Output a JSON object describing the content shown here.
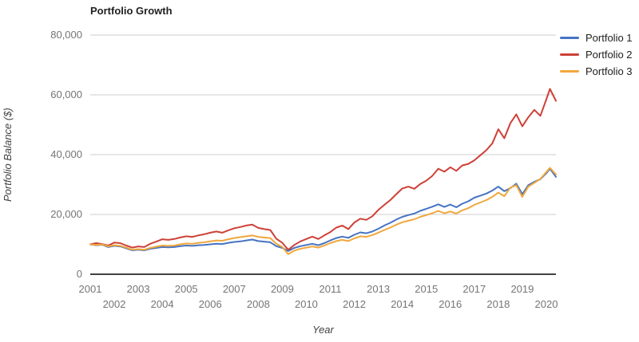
{
  "title": "Portfolio Growth",
  "chart_data": {
    "type": "line",
    "title": "Portfolio Growth",
    "xlabel": "Year",
    "ylabel": "Portfolio Balance ($)",
    "legend_position": "top-right",
    "grid": true,
    "xlim": [
      2001,
      2020.4
    ],
    "ylim": [
      0,
      80000
    ],
    "x_ticks": [
      2001,
      2002,
      2003,
      2004,
      2005,
      2006,
      2007,
      2008,
      2009,
      2010,
      2011,
      2012,
      2013,
      2014,
      2015,
      2016,
      2017,
      2018,
      2019,
      2020
    ],
    "y_ticks": [
      0,
      20000,
      40000,
      60000,
      80000
    ],
    "y_tick_labels": [
      "0",
      "20,000",
      "40,000",
      "60,000",
      "80,000"
    ],
    "x": [
      2001,
      2001.25,
      2001.5,
      2001.75,
      2002,
      2002.25,
      2002.5,
      2002.75,
      2003,
      2003.25,
      2003.5,
      2003.75,
      2004,
      2004.25,
      2004.5,
      2004.75,
      2005,
      2005.25,
      2005.5,
      2005.75,
      2006,
      2006.25,
      2006.5,
      2006.75,
      2007,
      2007.25,
      2007.5,
      2007.75,
      2008,
      2008.25,
      2008.5,
      2008.75,
      2009,
      2009.25,
      2009.5,
      2009.75,
      2010,
      2010.25,
      2010.5,
      2010.75,
      2011,
      2011.25,
      2011.5,
      2011.75,
      2012,
      2012.25,
      2012.5,
      2012.75,
      2013,
      2013.25,
      2013.5,
      2013.75,
      2014,
      2014.25,
      2014.5,
      2014.75,
      2015,
      2015.25,
      2015.5,
      2015.75,
      2016,
      2016.25,
      2016.5,
      2016.75,
      2017,
      2017.25,
      2017.5,
      2017.75,
      2018,
      2018.25,
      2018.5,
      2018.75,
      2019,
      2019.25,
      2019.5,
      2019.75,
      2020,
      2020.15,
      2020.4
    ],
    "series": [
      {
        "name": "Portfolio 1",
        "color": "#4673C2",
        "values": [
          10000,
          9700,
          9900,
          9100,
          9500,
          9300,
          8700,
          8000,
          8200,
          8000,
          8500,
          8800,
          9100,
          9000,
          9100,
          9400,
          9600,
          9500,
          9700,
          9800,
          10000,
          10200,
          10100,
          10500,
          10800,
          11000,
          11300,
          11600,
          11100,
          10900,
          10700,
          9400,
          8800,
          7800,
          8800,
          9400,
          9800,
          10200,
          9700,
          10400,
          11300,
          12100,
          12600,
          12200,
          13200,
          14000,
          13700,
          14300,
          15200,
          16300,
          17200,
          18300,
          19200,
          19800,
          20300,
          21200,
          21900,
          22600,
          23400,
          22500,
          23300,
          22400,
          23600,
          24400,
          25600,
          26300,
          27000,
          28000,
          29300,
          27800,
          28800,
          30300,
          26800,
          29800,
          30900,
          31800,
          33800,
          35300,
          32600
        ]
      },
      {
        "name": "Portfolio 2",
        "color": "#CD4137",
        "values": [
          10000,
          10400,
          10100,
          9600,
          10600,
          10400,
          9600,
          8900,
          9300,
          9100,
          10200,
          10900,
          11700,
          11500,
          11800,
          12300,
          12700,
          12500,
          13000,
          13400,
          13900,
          14300,
          13900,
          14700,
          15400,
          15800,
          16300,
          16600,
          15500,
          15100,
          14800,
          11900,
          10500,
          8200,
          9800,
          11000,
          11800,
          12600,
          11800,
          13000,
          14100,
          15600,
          16300,
          15100,
          17300,
          18600,
          18200,
          19400,
          21500,
          23200,
          24800,
          26800,
          28700,
          29300,
          28600,
          30200,
          31300,
          32900,
          35300,
          34300,
          35800,
          34600,
          36400,
          36900,
          38100,
          39800,
          41500,
          43800,
          48500,
          45500,
          50500,
          53500,
          49500,
          52500,
          55000,
          53000,
          58500,
          62000,
          58000
        ]
      },
      {
        "name": "Portfolio 3",
        "color": "#F0A73C",
        "values": [
          10000,
          9800,
          10000,
          9300,
          9700,
          9500,
          8900,
          8200,
          8400,
          8200,
          8800,
          9200,
          9600,
          9500,
          9600,
          10000,
          10300,
          10200,
          10500,
          10700,
          11000,
          11300,
          11200,
          11700,
          12100,
          12400,
          12700,
          13000,
          12500,
          12300,
          12100,
          10200,
          9100,
          6700,
          7900,
          8500,
          8900,
          9300,
          8900,
          9600,
          10400,
          11100,
          11500,
          11100,
          12000,
          12700,
          12500,
          13100,
          13900,
          14800,
          15600,
          16600,
          17400,
          17900,
          18400,
          19200,
          19800,
          20400,
          21200,
          20400,
          21000,
          20300,
          21400,
          22100,
          23200,
          24000,
          24800,
          25900,
          27300,
          26100,
          29000,
          29800,
          25900,
          29300,
          30600,
          31900,
          34200,
          35600,
          33400
        ]
      }
    ]
  }
}
